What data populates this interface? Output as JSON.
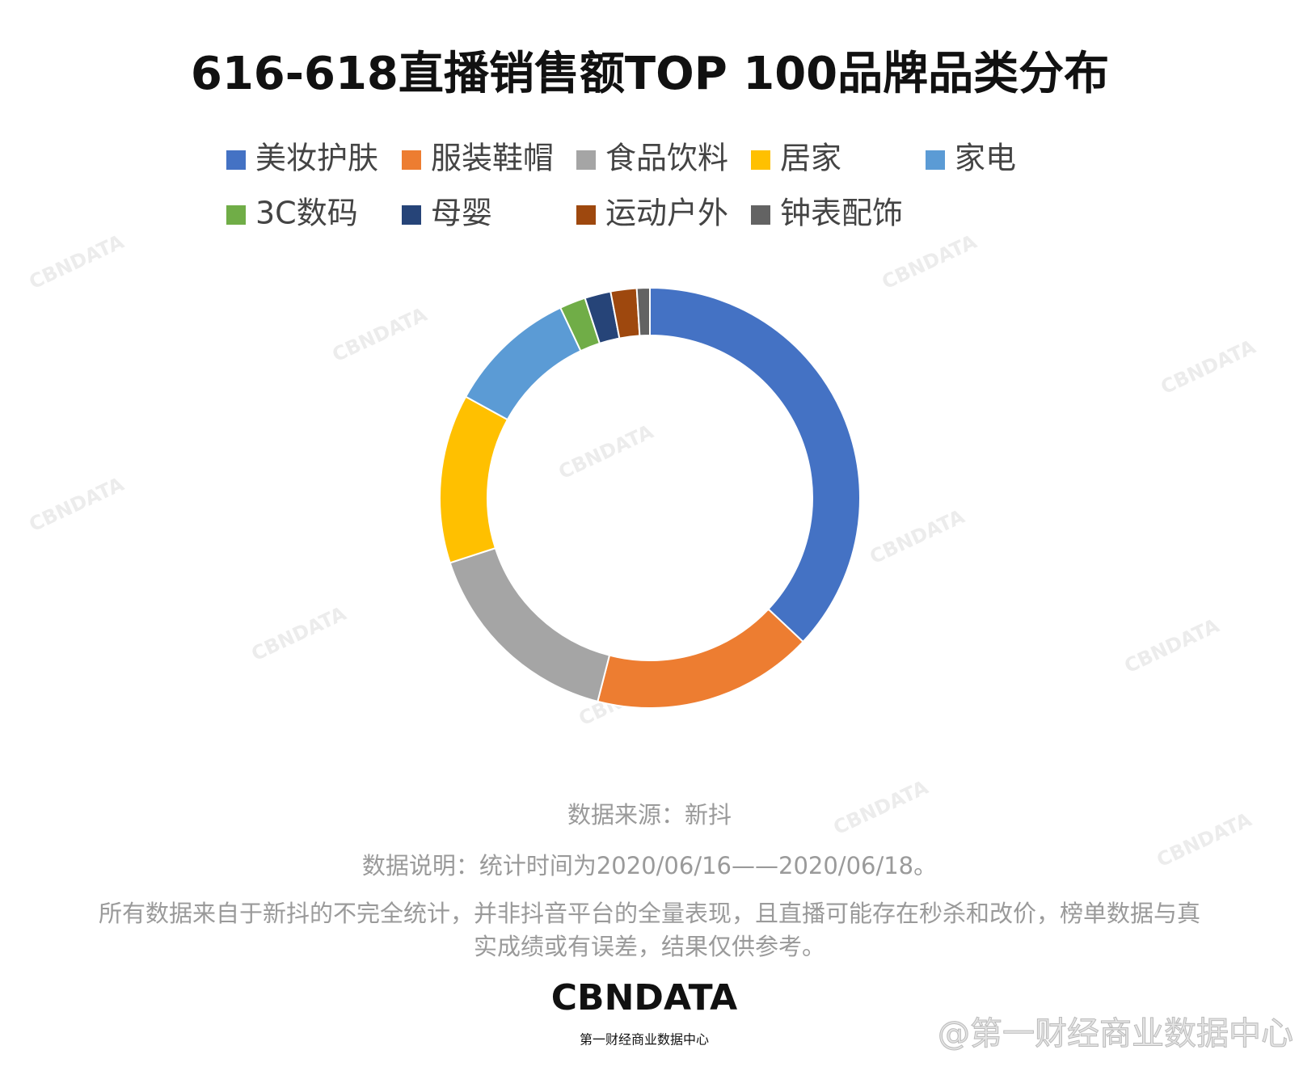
{
  "chart_data": {
    "type": "donut",
    "title": "616-618直播销售额TOP 100品牌品类分布",
    "categories": [
      "美妆护肤",
      "服装鞋帽",
      "食品饮料",
      "居家",
      "家电",
      "3C数码",
      "母婴",
      "运动户外",
      "钟表配饰"
    ],
    "values": [
      37,
      17,
      16,
      13,
      10,
      2,
      2,
      2,
      1
    ],
    "colors": [
      "#4472c4",
      "#ed7d31",
      "#a5a5a5",
      "#ffc000",
      "#5b9bd5",
      "#70ad47",
      "#264478",
      "#9e480e",
      "#636363"
    ]
  },
  "notes": {
    "source": "数据来源：新抖",
    "description": "数据说明：统计时间为2020/06/16——2020/06/18。",
    "disclaimer": "所有数据来自于新抖的不完全统计，并非抖音平台的全量表现，且直播可能存在秒杀和改价，榜单数据与真实成绩或有误差，结果仅供参考。"
  },
  "branding": {
    "logo": "CBNDATA",
    "logo_subtitle": "第一财经商业数据中心",
    "weibo": "@第一财经商业数据中心",
    "watermark": "CBNDATA"
  }
}
